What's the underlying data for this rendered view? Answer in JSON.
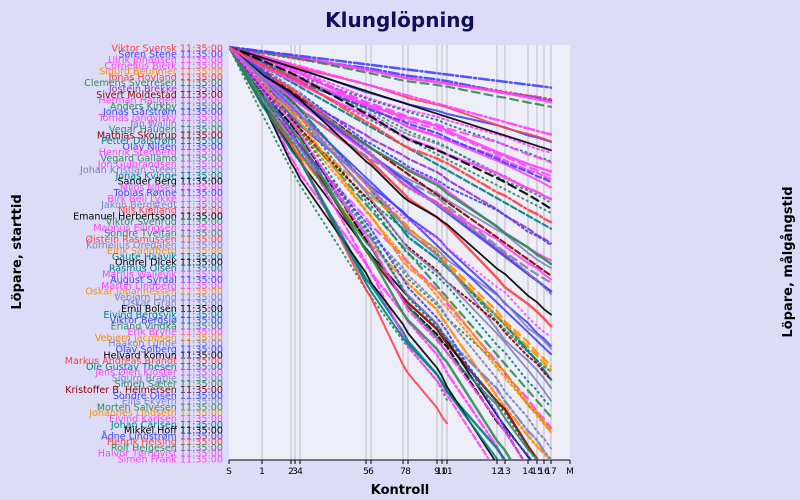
{
  "chart_data": {
    "type": "line",
    "title": "Klunglöpning",
    "xlabel": "Kontroll",
    "ylabel_left": "Löpare, starttid",
    "ylabel_right": "Löpare, målgångstid",
    "x_ticks": [
      "S",
      "1",
      "2",
      "3",
      "4",
      "5",
      "6",
      "7",
      "8",
      "9",
      "10",
      "11",
      "12",
      "13",
      "14",
      "15",
      "16",
      "17",
      "M"
    ],
    "grid": "vertical",
    "start_time": "11:35:00",
    "runners": [
      {
        "name": "Viktor Svensk",
        "color": "#ff4040"
      },
      {
        "name": "Søren Stene",
        "color": "#4040ff"
      },
      {
        "name": "Ulrik Johansen",
        "color": "#ff40ff"
      },
      {
        "name": "Cornelius Bjerk",
        "color": "#ff40ff"
      },
      {
        "name": "Sigurd Beuhmer",
        "color": "#ff8c00"
      },
      {
        "name": "Jonas Hovland",
        "color": "#ff4040"
      },
      {
        "name": "Clemens Sverresen",
        "color": "#2e8b57"
      },
      {
        "name": "Jostein Brekke",
        "color": "#9932cc"
      },
      {
        "name": "Sivert Moldestad",
        "color": "#8b0000"
      },
      {
        "name": "Herman Haugen",
        "color": "#ff40ff"
      },
      {
        "name": "Anders Kirkby",
        "color": "#2e8b57"
      },
      {
        "name": "Jonas Gärstrøm",
        "color": "#4040ff"
      },
      {
        "name": "Tomas Jangvisky",
        "color": "#ff40ff"
      },
      {
        "name": "Jan Wallin",
        "color": "#8080c0"
      },
      {
        "name": "Vegar Haugen",
        "color": "#2e8b57"
      },
      {
        "name": "Mathias Skourup",
        "color": "#8b0000"
      },
      {
        "name": "Petter Dalstrøm",
        "color": "#008080"
      },
      {
        "name": "Olav Nilsen",
        "color": "#4040ff"
      },
      {
        "name": "Henrik Stenberg",
        "color": "#ff40ff"
      },
      {
        "name": "Vegard Gallamo",
        "color": "#2e8b57"
      },
      {
        "name": "Jon Gulbrandsen",
        "color": "#ff40ff"
      },
      {
        "name": "Johan Kristian Steen",
        "color": "#8080c0"
      },
      {
        "name": "Jonas Kvinge",
        "color": "#008080"
      },
      {
        "name": "Sander Berg",
        "color": "#000000"
      },
      {
        "name": "Milos Nilsen",
        "color": "#ff40ff"
      },
      {
        "name": "Tobias Rønne",
        "color": "#4040ff"
      },
      {
        "name": "Birk Bell Lykke",
        "color": "#ff40ff"
      },
      {
        "name": "Jakob Bergstedt",
        "color": "#8080c0"
      },
      {
        "name": "Nils Kjelland",
        "color": "#ff4040"
      },
      {
        "name": "Emanuel Herbertsson",
        "color": "#000000"
      },
      {
        "name": "Viktor Svenrud",
        "color": "#2e8b57"
      },
      {
        "name": "Magnus Ellingsen",
        "color": "#ff40ff"
      },
      {
        "name": "Sondre Tveitan",
        "color": "#2e8b57"
      },
      {
        "name": "Øistein Rasmussen",
        "color": "#ff4040"
      },
      {
        "name": "Kornelius Oredalen",
        "color": "#8080c0"
      },
      {
        "name": "Eirik Sandberg",
        "color": "#ff8c00"
      },
      {
        "name": "Gaute Haavik",
        "color": "#008080"
      },
      {
        "name": "Ondrej Dicek",
        "color": "#000000"
      },
      {
        "name": "Rasmus Olsen",
        "color": "#008080"
      },
      {
        "name": "Marius Wallevik",
        "color": "#ff40ff"
      },
      {
        "name": "August Syrdal",
        "color": "#4040ff"
      },
      {
        "name": "Martin Lindberg",
        "color": "#ff40ff"
      },
      {
        "name": "Oskar Johannessen",
        "color": "#ff8c00"
      },
      {
        "name": "Vebjørn Lund",
        "color": "#8080c0"
      },
      {
        "name": "Oskar Gran",
        "color": "#8080c0"
      },
      {
        "name": "Emil Bolsen",
        "color": "#000000"
      },
      {
        "name": "Eivind Bergsvik",
        "color": "#008080"
      },
      {
        "name": "Viktor Bergsjø",
        "color": "#4040ff"
      },
      {
        "name": "Erland Vindkå",
        "color": "#2e8b57"
      },
      {
        "name": "Erik Bryne",
        "color": "#ff40ff"
      },
      {
        "name": "Vebjørn Jacobsen",
        "color": "#ff8c00"
      },
      {
        "name": "Haakon Lunde",
        "color": "#8080c0"
      },
      {
        "name": "Olav Solberg",
        "color": "#4040ff"
      },
      {
        "name": "Helvard Komun",
        "color": "#000000"
      },
      {
        "name": "Markus Andreas Brandt",
        "color": "#ff4040"
      },
      {
        "name": "Ole Gustav Thesen",
        "color": "#008080"
      },
      {
        "name": "Jens Øien Kloster",
        "color": "#ff40ff"
      },
      {
        "name": "Sigurd Bratlie",
        "color": "#8080c0"
      },
      {
        "name": "Simen Sæter",
        "color": "#2e8b57"
      },
      {
        "name": "Kristoffer B. Helmersen",
        "color": "#8b0000"
      },
      {
        "name": "Sondre Olsen",
        "color": "#4040ff"
      },
      {
        "name": "Eilis Ekvern",
        "color": "#8080c0"
      },
      {
        "name": "Morten Salvesen",
        "color": "#2e8b57"
      },
      {
        "name": "Johannes Lindseth",
        "color": "#ff8c00"
      },
      {
        "name": "Eivind Karlsen",
        "color": "#ff40ff"
      },
      {
        "name": "Johan Carlsen",
        "color": "#008080"
      },
      {
        "name": "Mikkel Hoff",
        "color": "#000000"
      },
      {
        "name": "Ådne Lindstrøm",
        "color": "#4040ff"
      },
      {
        "name": "Henrik Helsing",
        "color": "#ff4040"
      },
      {
        "name": "Rolf Helgesen",
        "color": "#2e8b57"
      },
      {
        "name": "Halvor Tørnqvist",
        "color": "#ff40ff"
      },
      {
        "name": "Simen Frank",
        "color": "#ff40ff"
      }
    ]
  }
}
